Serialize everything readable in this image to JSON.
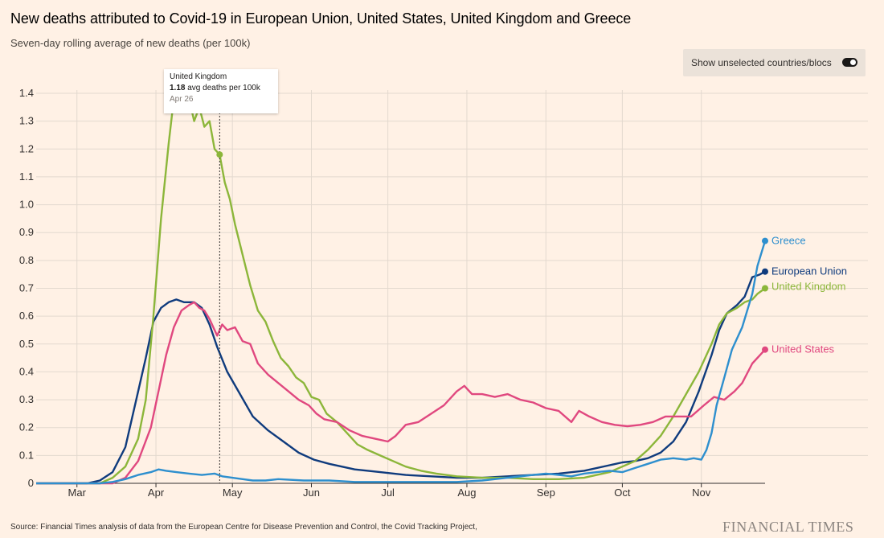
{
  "header": {
    "title": "New deaths attributed to Covid-19 in European Union, United States, United Kingdom and Greece",
    "subtitle": "Seven-day rolling average of new deaths (per 100k)"
  },
  "toggle": {
    "label": "Show unselected countries/blocs"
  },
  "tooltip": {
    "country": "United Kingdom",
    "value": "1.18",
    "unit": "avg deaths per 100k",
    "date": "Apr 26"
  },
  "footer": {
    "source": "Source: Financial Times analysis of data from the European Centre for Disease Prevention and Control, the Covid Tracking Project,",
    "logo": "FINANCIAL TIMES"
  },
  "colors": {
    "background": "#fff1e5",
    "gridline": "#e3d9cf",
    "axis": "#33302e",
    "european_union": "#0f3b7d",
    "united_kingdom": "#8cb63a",
    "united_states": "#e0487f",
    "greece": "#2e8fce"
  },
  "chart_data": {
    "type": "line",
    "title": "New deaths attributed to Covid-19 in European Union, United States, United Kingdom and Greece",
    "subtitle": "Seven-day rolling average of new deaths (per 100k)",
    "xlabel": "",
    "ylabel": "",
    "x_ticks": [
      {
        "label": "Mar",
        "day": 31
      },
      {
        "label": "Apr",
        "day": 62
      },
      {
        "label": "May",
        "day": 92
      },
      {
        "label": "Jun",
        "day": 123
      },
      {
        "label": "Jul",
        "day": 153
      },
      {
        "label": "Aug",
        "day": 184
      },
      {
        "label": "Sep",
        "day": 215
      },
      {
        "label": "Oct",
        "day": 245
      },
      {
        "label": "Nov",
        "day": 276
      }
    ],
    "x_range_day": [
      15,
      301
    ],
    "ylim": [
      0,
      1.4
    ],
    "y_ticks": [
      0,
      0.1,
      0.2,
      0.3,
      0.4,
      0.5,
      0.6,
      0.7,
      0.8,
      0.9,
      1.0,
      1.1,
      1.2,
      1.3,
      1.4
    ],
    "grid": true,
    "legend": "line-end labels",
    "highlight": {
      "series": "United Kingdom",
      "day": 87,
      "value": 1.18,
      "label": "Apr 26"
    },
    "series": [
      {
        "name": "European Union",
        "color": "#0f3b7d",
        "points": [
          [
            15,
            0
          ],
          [
            35,
            0
          ],
          [
            40,
            0.01
          ],
          [
            45,
            0.04
          ],
          [
            50,
            0.13
          ],
          [
            55,
            0.33
          ],
          [
            58,
            0.45
          ],
          [
            61,
            0.58
          ],
          [
            64,
            0.63
          ],
          [
            67,
            0.65
          ],
          [
            70,
            0.66
          ],
          [
            73,
            0.65
          ],
          [
            77,
            0.65
          ],
          [
            80,
            0.63
          ],
          [
            83,
            0.57
          ],
          [
            86,
            0.49
          ],
          [
            90,
            0.4
          ],
          [
            95,
            0.32
          ],
          [
            100,
            0.24
          ],
          [
            106,
            0.19
          ],
          [
            112,
            0.15
          ],
          [
            118,
            0.11
          ],
          [
            124,
            0.085
          ],
          [
            130,
            0.07
          ],
          [
            140,
            0.05
          ],
          [
            150,
            0.04
          ],
          [
            160,
            0.03
          ],
          [
            170,
            0.025
          ],
          [
            180,
            0.02
          ],
          [
            190,
            0.02
          ],
          [
            200,
            0.025
          ],
          [
            210,
            0.03
          ],
          [
            220,
            0.035
          ],
          [
            230,
            0.045
          ],
          [
            240,
            0.065
          ],
          [
            245,
            0.075
          ],
          [
            250,
            0.08
          ],
          [
            255,
            0.09
          ],
          [
            260,
            0.11
          ],
          [
            265,
            0.15
          ],
          [
            270,
            0.22
          ],
          [
            275,
            0.33
          ],
          [
            280,
            0.46
          ],
          [
            283,
            0.55
          ],
          [
            286,
            0.61
          ],
          [
            290,
            0.64
          ],
          [
            293,
            0.67
          ],
          [
            296,
            0.74
          ],
          [
            299,
            0.75
          ],
          [
            301,
            0.76
          ]
        ]
      },
      {
        "name": "United Kingdom",
        "color": "#8cb63a",
        "points": [
          [
            15,
            0
          ],
          [
            40,
            0
          ],
          [
            45,
            0.02
          ],
          [
            50,
            0.06
          ],
          [
            55,
            0.16
          ],
          [
            58,
            0.3
          ],
          [
            61,
            0.6
          ],
          [
            64,
            0.95
          ],
          [
            67,
            1.22
          ],
          [
            69,
            1.38
          ],
          [
            71,
            1.48
          ],
          [
            73,
            1.45
          ],
          [
            75,
            1.38
          ],
          [
            77,
            1.3
          ],
          [
            79,
            1.35
          ],
          [
            81,
            1.28
          ],
          [
            83,
            1.3
          ],
          [
            85,
            1.2
          ],
          [
            87,
            1.18
          ],
          [
            89,
            1.08
          ],
          [
            91,
            1.02
          ],
          [
            93,
            0.93
          ],
          [
            96,
            0.82
          ],
          [
            99,
            0.71
          ],
          [
            102,
            0.62
          ],
          [
            105,
            0.58
          ],
          [
            108,
            0.51
          ],
          [
            111,
            0.45
          ],
          [
            114,
            0.42
          ],
          [
            117,
            0.38
          ],
          [
            120,
            0.36
          ],
          [
            123,
            0.31
          ],
          [
            126,
            0.3
          ],
          [
            129,
            0.25
          ],
          [
            133,
            0.22
          ],
          [
            137,
            0.18
          ],
          [
            141,
            0.14
          ],
          [
            145,
            0.12
          ],
          [
            150,
            0.1
          ],
          [
            155,
            0.08
          ],
          [
            160,
            0.06
          ],
          [
            166,
            0.045
          ],
          [
            172,
            0.035
          ],
          [
            180,
            0.025
          ],
          [
            190,
            0.02
          ],
          [
            200,
            0.02
          ],
          [
            210,
            0.015
          ],
          [
            220,
            0.015
          ],
          [
            230,
            0.02
          ],
          [
            240,
            0.04
          ],
          [
            245,
            0.06
          ],
          [
            250,
            0.08
          ],
          [
            255,
            0.12
          ],
          [
            260,
            0.17
          ],
          [
            265,
            0.24
          ],
          [
            270,
            0.32
          ],
          [
            275,
            0.4
          ],
          [
            280,
            0.5
          ],
          [
            283,
            0.57
          ],
          [
            286,
            0.61
          ],
          [
            290,
            0.63
          ],
          [
            293,
            0.65
          ],
          [
            296,
            0.66
          ],
          [
            298,
            0.68
          ],
          [
            301,
            0.7
          ]
        ]
      },
      {
        "name": "United States",
        "color": "#e0487f",
        "points": [
          [
            15,
            0
          ],
          [
            45,
            0
          ],
          [
            50,
            0.02
          ],
          [
            55,
            0.08
          ],
          [
            60,
            0.2
          ],
          [
            63,
            0.33
          ],
          [
            66,
            0.46
          ],
          [
            69,
            0.56
          ],
          [
            72,
            0.62
          ],
          [
            75,
            0.64
          ],
          [
            77,
            0.65
          ],
          [
            79,
            0.63
          ],
          [
            81,
            0.62
          ],
          [
            83,
            0.59
          ],
          [
            86,
            0.53
          ],
          [
            88,
            0.57
          ],
          [
            90,
            0.55
          ],
          [
            93,
            0.56
          ],
          [
            96,
            0.51
          ],
          [
            99,
            0.5
          ],
          [
            102,
            0.43
          ],
          [
            106,
            0.39
          ],
          [
            110,
            0.36
          ],
          [
            114,
            0.33
          ],
          [
            118,
            0.3
          ],
          [
            122,
            0.28
          ],
          [
            125,
            0.25
          ],
          [
            128,
            0.23
          ],
          [
            133,
            0.22
          ],
          [
            138,
            0.19
          ],
          [
            143,
            0.17
          ],
          [
            148,
            0.16
          ],
          [
            153,
            0.15
          ],
          [
            156,
            0.17
          ],
          [
            160,
            0.21
          ],
          [
            165,
            0.22
          ],
          [
            170,
            0.25
          ],
          [
            175,
            0.28
          ],
          [
            180,
            0.33
          ],
          [
            183,
            0.35
          ],
          [
            186,
            0.32
          ],
          [
            190,
            0.32
          ],
          [
            195,
            0.31
          ],
          [
            200,
            0.32
          ],
          [
            205,
            0.3
          ],
          [
            210,
            0.29
          ],
          [
            215,
            0.27
          ],
          [
            220,
            0.26
          ],
          [
            225,
            0.22
          ],
          [
            228,
            0.26
          ],
          [
            232,
            0.24
          ],
          [
            237,
            0.22
          ],
          [
            242,
            0.21
          ],
          [
            247,
            0.205
          ],
          [
            252,
            0.21
          ],
          [
            257,
            0.22
          ],
          [
            262,
            0.24
          ],
          [
            267,
            0.24
          ],
          [
            272,
            0.24
          ],
          [
            277,
            0.28
          ],
          [
            281,
            0.31
          ],
          [
            285,
            0.3
          ],
          [
            289,
            0.33
          ],
          [
            292,
            0.36
          ],
          [
            296,
            0.43
          ],
          [
            299,
            0.46
          ],
          [
            301,
            0.48
          ]
        ]
      },
      {
        "name": "Greece",
        "color": "#2e8fce",
        "points": [
          [
            15,
            0
          ],
          [
            40,
            0
          ],
          [
            45,
            0.005
          ],
          [
            50,
            0.015
          ],
          [
            55,
            0.03
          ],
          [
            60,
            0.04
          ],
          [
            63,
            0.05
          ],
          [
            66,
            0.045
          ],
          [
            70,
            0.04
          ],
          [
            75,
            0.035
          ],
          [
            80,
            0.03
          ],
          [
            85,
            0.035
          ],
          [
            88,
            0.025
          ],
          [
            92,
            0.02
          ],
          [
            96,
            0.015
          ],
          [
            100,
            0.01
          ],
          [
            105,
            0.01
          ],
          [
            110,
            0.015
          ],
          [
            120,
            0.01
          ],
          [
            130,
            0.01
          ],
          [
            140,
            0.005
          ],
          [
            150,
            0.005
          ],
          [
            160,
            0.005
          ],
          [
            170,
            0.005
          ],
          [
            180,
            0.005
          ],
          [
            190,
            0.01
          ],
          [
            200,
            0.02
          ],
          [
            210,
            0.03
          ],
          [
            215,
            0.035
          ],
          [
            220,
            0.03
          ],
          [
            225,
            0.025
          ],
          [
            230,
            0.035
          ],
          [
            235,
            0.04
          ],
          [
            240,
            0.045
          ],
          [
            245,
            0.04
          ],
          [
            250,
            0.055
          ],
          [
            255,
            0.07
          ],
          [
            260,
            0.085
          ],
          [
            265,
            0.09
          ],
          [
            270,
            0.085
          ],
          [
            273,
            0.09
          ],
          [
            276,
            0.085
          ],
          [
            278,
            0.12
          ],
          [
            280,
            0.18
          ],
          [
            282,
            0.28
          ],
          [
            285,
            0.38
          ],
          [
            288,
            0.48
          ],
          [
            290,
            0.52
          ],
          [
            292,
            0.56
          ],
          [
            294,
            0.62
          ],
          [
            296,
            0.68
          ],
          [
            298,
            0.78
          ],
          [
            301,
            0.87
          ]
        ]
      }
    ]
  }
}
